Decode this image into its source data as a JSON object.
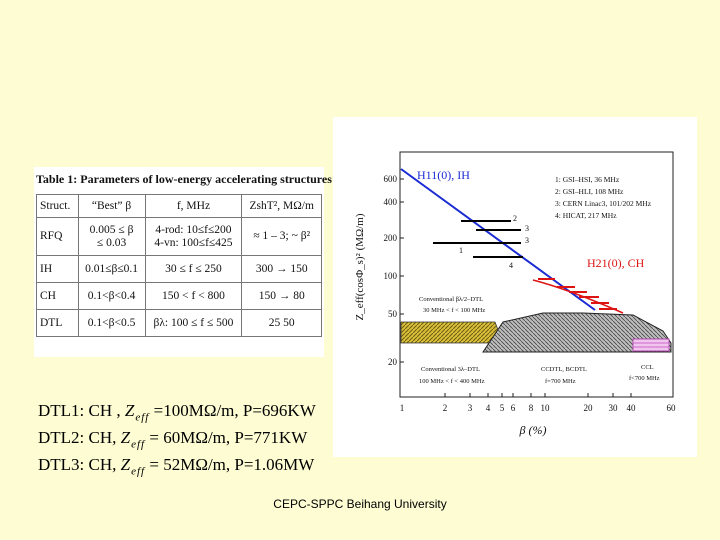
{
  "table": {
    "title": "Table 1: Parameters of low-energy accelerating structures",
    "headers": [
      "Struct.",
      "“Best” β",
      "f, MHz",
      "ZshT², MΩ/m"
    ],
    "rows": [
      {
        "struct": "RFQ",
        "beta": [
          "0.005 ≤ β",
          "≤ 0.03"
        ],
        "freq": [
          "4-rod: 10≤f≤200",
          "4-vn: 100≤f≤425"
        ],
        "z": [
          "≈ 1 – 3; ~ β²",
          ""
        ]
      },
      {
        "struct": "IH",
        "beta": [
          "0.01≤β≤0.1"
        ],
        "freq": [
          "30 ≤ f ≤ 250"
        ],
        "z": [
          "300 → 150"
        ]
      },
      {
        "struct": "CH",
        "beta": [
          "0.1<β<0.4"
        ],
        "freq": [
          "150 < f < 800"
        ],
        "z": [
          "150 → 80"
        ]
      },
      {
        "struct": "DTL",
        "beta": [
          "0.1<β<0.5"
        ],
        "freq": [
          "βλ: 100 ≤ f ≤ 500"
        ],
        "z": [
          "25   50"
        ]
      }
    ]
  },
  "dtl": [
    {
      "prefix": "DTL1: CH , ",
      "zeff": "Z",
      "sub": "eff",
      "rest": " =100MΩ/m, P=696KW"
    },
    {
      "prefix": "DTL2: CH,  ",
      "zeff": "Z",
      "sub": "eff",
      "rest": " = 60MΩ/m,  P=771KW"
    },
    {
      "prefix": "DTL3: CH,  ",
      "zeff": "Z",
      "sub": "eff",
      "rest": " =  52MΩ/m, P=1.06MW"
    }
  ],
  "plot": {
    "ylabel": "Z_eff(cosΦ_s)² (MΩ/m)",
    "xlabel": "β (%)",
    "y_ticks": [
      "600",
      "400",
      "200",
      "100",
      "50",
      "20"
    ],
    "x_ticks": [
      "1",
      "2",
      "3",
      "4",
      "5",
      "6",
      "8",
      "10",
      "20",
      "30",
      "40",
      "60"
    ],
    "h_label": "H11(0), IH",
    "ch_label": "H21(0), CH",
    "legend": [
      "1: GSI–HSI, 36 MHz",
      "2: GSI–HLI, 108 MHz",
      "3: CERN Linac3, 101/202 MHz",
      "4: HICAT, 217 MHz"
    ],
    "point_labels": [
      "1",
      "2",
      "3",
      "3",
      "4"
    ],
    "dtl_label_1": [
      "Conventional βλ/2–DTL",
      "30 MHz < f < 100 MHz"
    ],
    "dtl_label_2": [
      "Conventional 3λ–DTL",
      "100 MHz < f < 400 MHz"
    ],
    "ccdtl_label": [
      "CCDTL, BCDTL",
      "f=700 MHz"
    ],
    "ccl_label": [
      "CCL",
      "f<700 MHz"
    ]
  },
  "footer": "CEPC-SPPC Beihang University"
}
